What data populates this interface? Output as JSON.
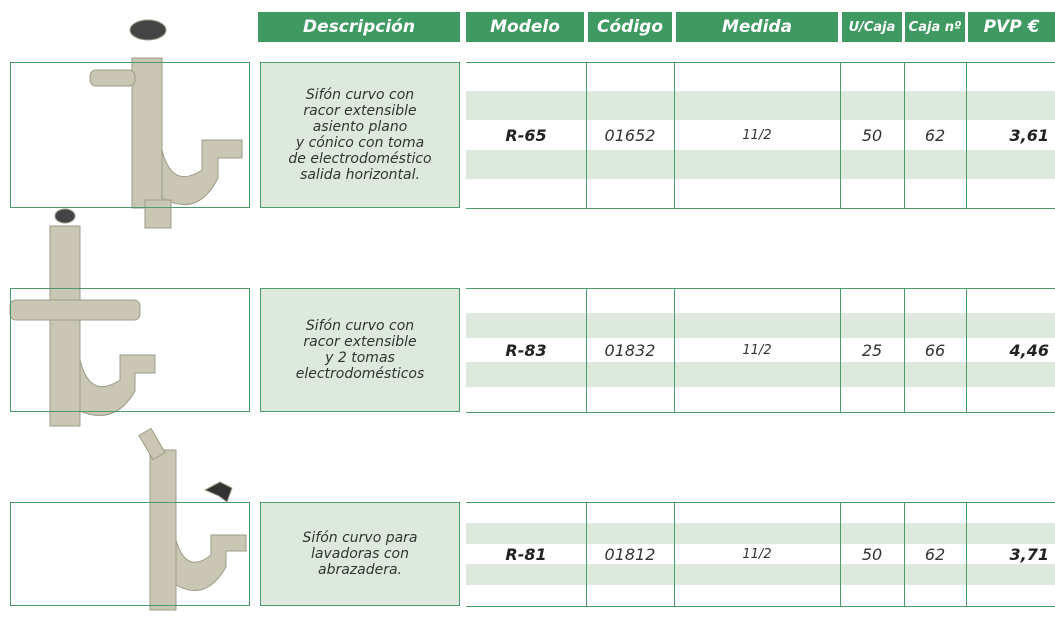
{
  "header": {
    "columns": [
      "Descripción",
      "Modelo",
      "Código",
      "Medida",
      "U/Caja",
      "Caja nº",
      "PVP €"
    ]
  },
  "products": [
    {
      "description": [
        "Sifón curvo con",
        "racor extensible",
        "asiento plano",
        "y cónico con toma",
        "de electrodoméstico",
        "salida horizontal."
      ],
      "model": "R-65",
      "code": "01652",
      "measure": "11/2",
      "units": "50",
      "box": "62",
      "price": "3,61"
    },
    {
      "description": [
        "Sifón curvo con",
        "racor extensible",
        "y 2 tomas",
        "electrodomésticos"
      ],
      "model": "R-83",
      "code": "01832",
      "measure": "11/2",
      "units": "25",
      "box": "66",
      "price": "4,46"
    },
    {
      "description": [
        "Sifón curvo para",
        "lavadoras con",
        "abrazadera."
      ],
      "model": "R-81",
      "code": "01812",
      "measure": "11/2",
      "units": "50",
      "box": "62",
      "price": "3,71"
    }
  ]
}
